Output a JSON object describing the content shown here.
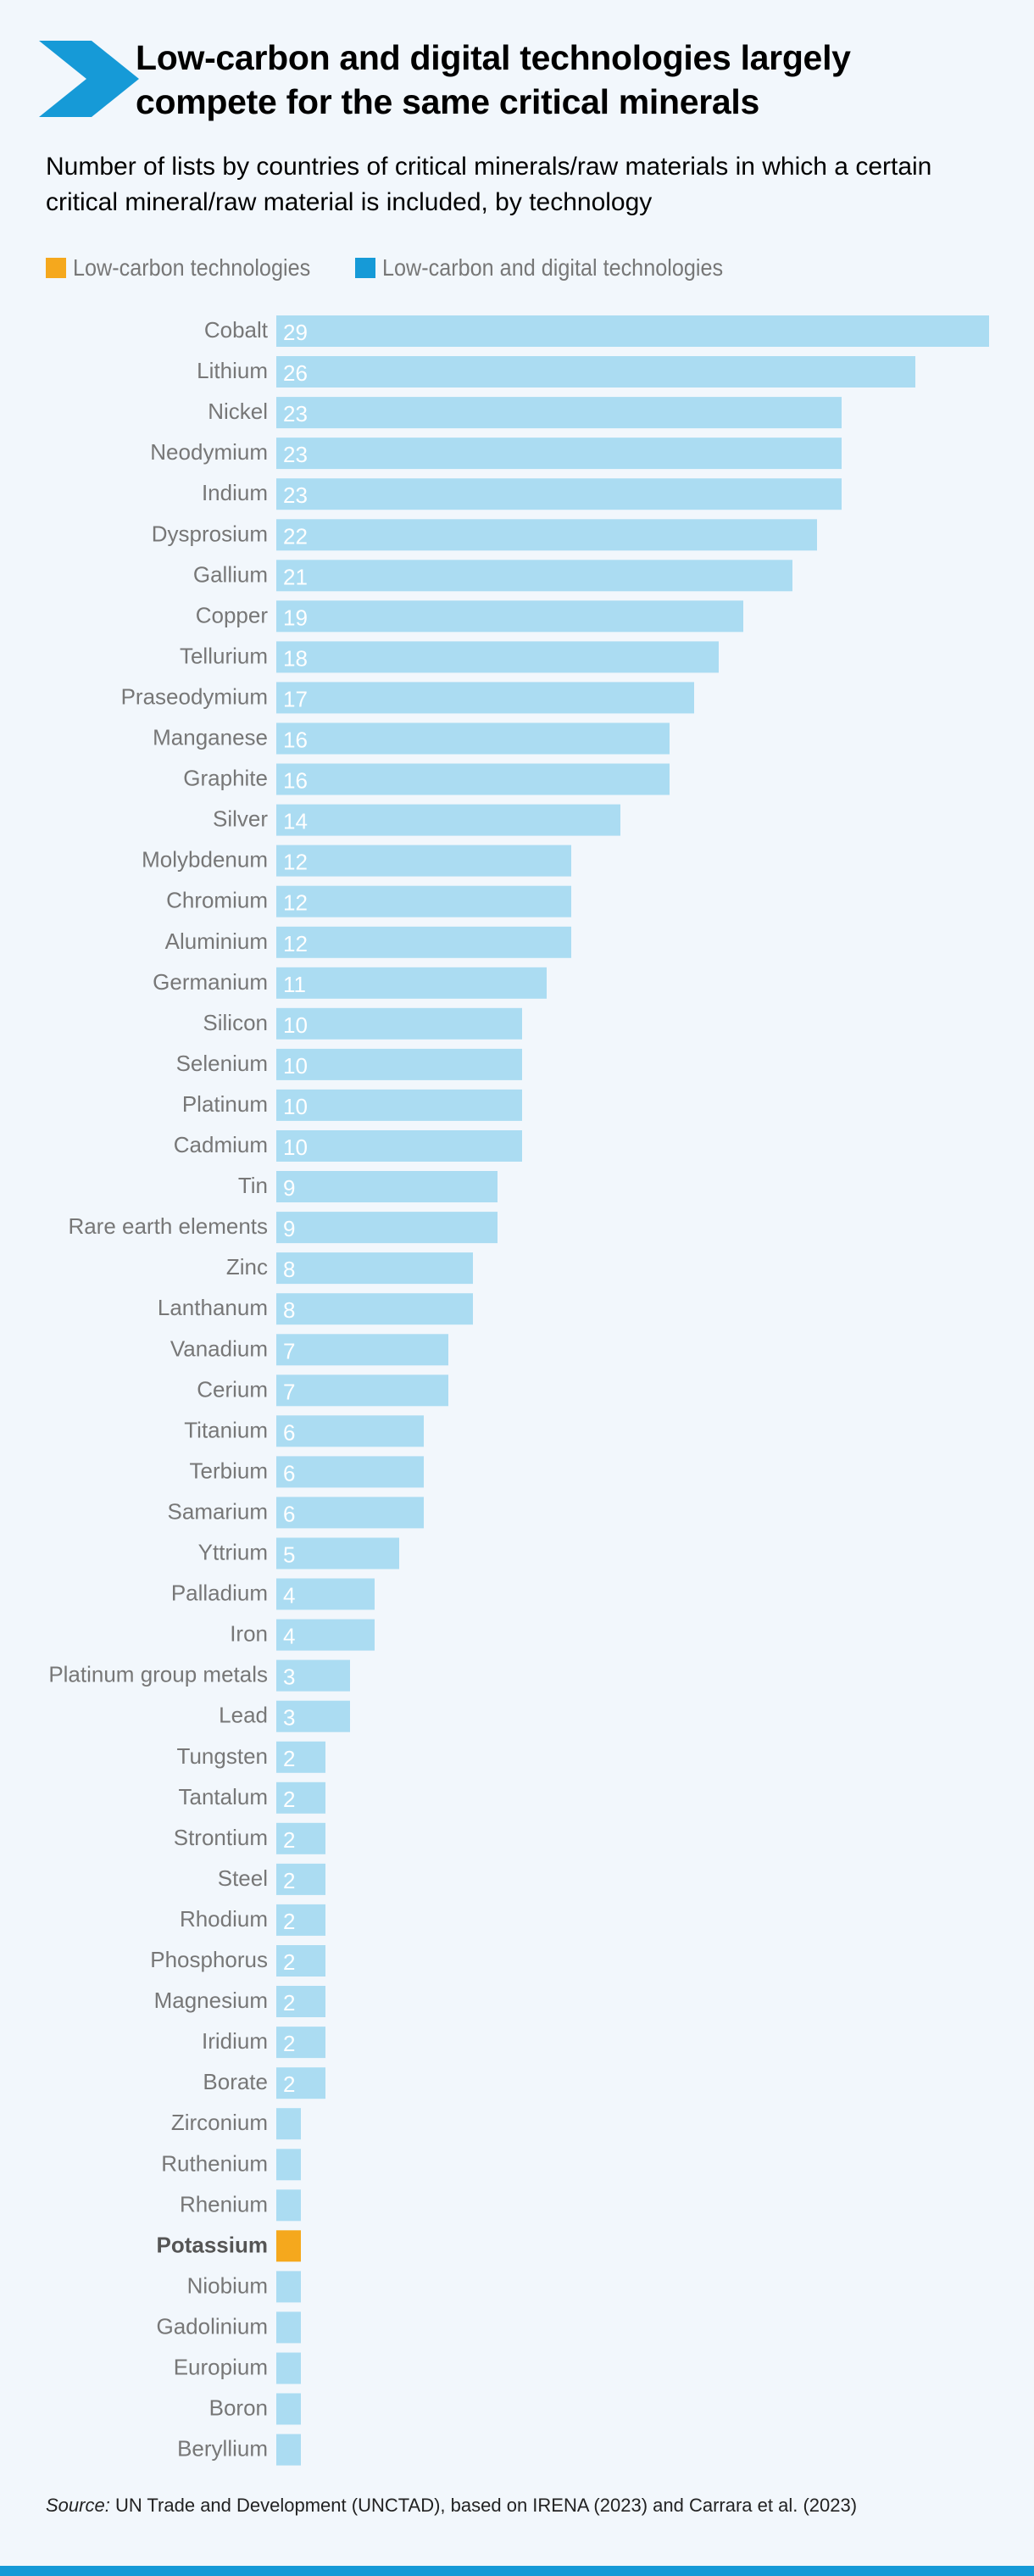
{
  "header": {
    "title": "Low-carbon and digital technologies largely compete for the same critical minerals",
    "subtitle": "Number of lists by countries of critical minerals/raw materials in which a certain critical mineral/raw material is included, by technology"
  },
  "legend": [
    {
      "label": "Low-carbon technologies",
      "color": "#f5a81d"
    },
    {
      "label": "Low-carbon and digital technologies",
      "color": "#169ad7"
    }
  ],
  "colors": {
    "accent": "#169ad7",
    "bar_digital": "#abdcf2",
    "bar_low_carbon": "#f5a81d",
    "value_label": "#ffffff",
    "category_label": "#777777",
    "background": "#f2f7fc"
  },
  "chart_data": {
    "type": "bar",
    "orientation": "horizontal",
    "categories": [
      "Cobalt",
      "Lithium",
      "Nickel",
      "Neodymium",
      "Indium",
      "Dysprosium",
      "Gallium",
      "Copper",
      "Tellurium",
      "Praseodymium",
      "Manganese",
      "Graphite",
      "Silver",
      "Molybdenum",
      "Chromium",
      "Aluminium",
      "Germanium",
      "Silicon",
      "Selenium",
      "Platinum",
      "Cadmium",
      "Tin",
      "Rare earth elements",
      "Zinc",
      "Lanthanum",
      "Vanadium",
      "Cerium",
      "Titanium",
      "Terbium",
      "Samarium",
      "Yttrium",
      "Palladium",
      "Iron",
      "Platinum group metals",
      "Lead",
      "Tungsten",
      "Tantalum",
      "Strontium",
      "Steel",
      "Rhodium",
      "Phosphorus",
      "Magnesium",
      "Iridium",
      "Borate",
      "Zirconium",
      "Ruthenium",
      "Rhenium",
      "Potassium",
      "Niobium",
      "Gadolinium",
      "Europium",
      "Boron",
      "Beryllium"
    ],
    "values": [
      29,
      26,
      23,
      23,
      23,
      22,
      21,
      19,
      18,
      17,
      16,
      16,
      14,
      12,
      12,
      12,
      11,
      10,
      10,
      10,
      10,
      9,
      9,
      8,
      8,
      7,
      7,
      6,
      6,
      6,
      5,
      4,
      4,
      3,
      3,
      2,
      2,
      2,
      2,
      2,
      2,
      2,
      2,
      2,
      1,
      1,
      1,
      1,
      1,
      1,
      1,
      1,
      1
    ],
    "technology": [
      "digital",
      "digital",
      "digital",
      "digital",
      "digital",
      "digital",
      "digital",
      "digital",
      "digital",
      "digital",
      "digital",
      "digital",
      "digital",
      "digital",
      "digital",
      "digital",
      "digital",
      "digital",
      "digital",
      "digital",
      "digital",
      "digital",
      "digital",
      "digital",
      "digital",
      "digital",
      "digital",
      "digital",
      "digital",
      "digital",
      "digital",
      "digital",
      "digital",
      "digital",
      "digital",
      "digital",
      "digital",
      "digital",
      "digital",
      "digital",
      "digital",
      "digital",
      "digital",
      "digital",
      "digital",
      "digital",
      "digital",
      "low-carbon",
      "digital",
      "digital",
      "digital",
      "digital",
      "digital"
    ],
    "value_labels_shown": [
      true,
      true,
      true,
      true,
      true,
      true,
      true,
      true,
      true,
      true,
      true,
      true,
      true,
      true,
      true,
      true,
      true,
      true,
      true,
      true,
      true,
      true,
      true,
      true,
      true,
      true,
      true,
      true,
      true,
      true,
      true,
      true,
      true,
      true,
      true,
      true,
      true,
      true,
      true,
      true,
      true,
      true,
      true,
      true,
      false,
      false,
      false,
      false,
      false,
      false,
      false,
      false,
      false
    ],
    "highlighted_category": "Potassium",
    "xlim": [
      0,
      29
    ],
    "grid": false,
    "legend_position": "top-left",
    "xlabel": "",
    "ylabel": ""
  },
  "source": {
    "prefix": "Source:",
    "text": " UN Trade and Development (UNCTAD), based on IRENA (2023) and Carrara et al. (2023)"
  }
}
